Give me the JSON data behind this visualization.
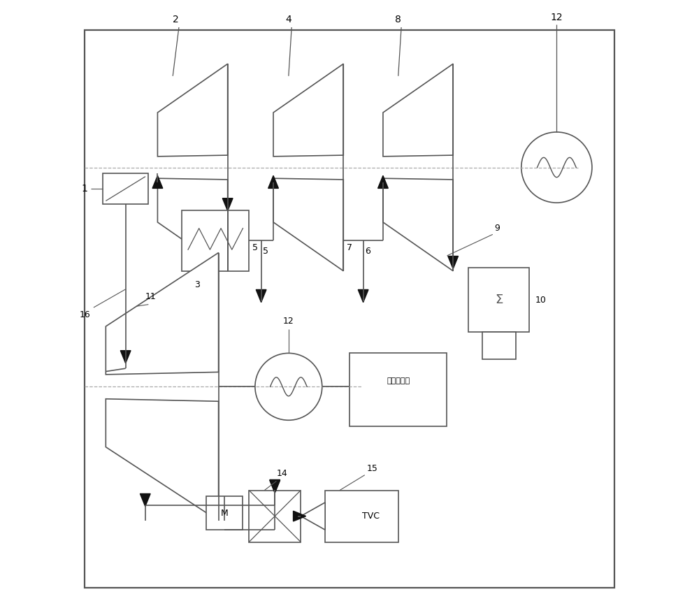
{
  "bg": "#ffffff",
  "lc": "#555555",
  "ac": "#111111",
  "fw": 10.0,
  "fh": 8.8,
  "dpi": 100,
  "lw": 1.2,
  "border": [
    6.5,
    4.0,
    87.0,
    91.5
  ]
}
